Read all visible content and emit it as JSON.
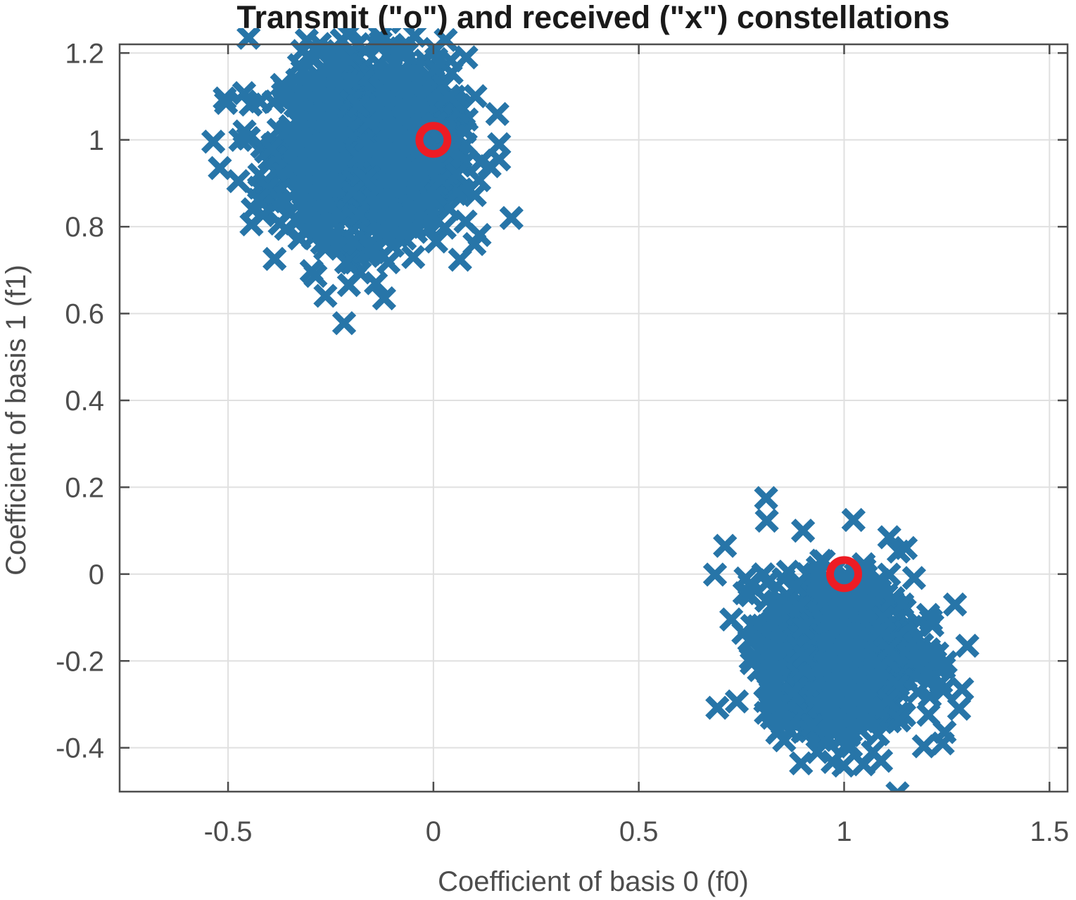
{
  "chart_data": {
    "type": "scatter",
    "title": "Transmit (\"o\") and received (\"x\") constellations",
    "xlabel": "Coefficient of basis 0 (f0)",
    "ylabel": "Coefficient of basis 1 (f1)",
    "xlim": [
      -0.764,
      1.544
    ],
    "ylim": [
      -0.501,
      1.22
    ],
    "xticks": [
      -0.5,
      0,
      0.5,
      1,
      1.5
    ],
    "xtick_labels": [
      "-0.5",
      "0",
      "0.5",
      "1",
      "1.5"
    ],
    "yticks": [
      -0.4,
      -0.2,
      0,
      0.2,
      0.4,
      0.6,
      0.8,
      1,
      1.2
    ],
    "ytick_labels": [
      "-0.4",
      "-0.2",
      "0",
      "0.2",
      "0.4",
      "0.6",
      "0.8",
      "1",
      "1.2"
    ],
    "grid": true,
    "legend": "none",
    "series": [
      {
        "name": "received",
        "marker": "x",
        "color": "#2775a8",
        "clusters": [
          {
            "center": [
              -0.16,
              0.98
            ],
            "spread": [
              0.1,
              0.1
            ],
            "count": 1500
          },
          {
            "center": [
              0.99,
              -0.18
            ],
            "spread": [
              0.09,
              0.085
            ],
            "count": 1100
          }
        ],
        "points": [
          [
            -0.52,
            0.935
          ],
          [
            -0.505,
            1.085
          ],
          [
            -0.475,
            0.905
          ],
          [
            -0.47,
            1.0
          ],
          [
            -0.45,
            1.235
          ],
          [
            -0.35,
            1.3
          ],
          [
            -0.44,
            0.84
          ],
          [
            -0.12,
            0.635
          ],
          [
            -0.14,
            0.67
          ],
          [
            0.03,
            1.23
          ],
          [
            0.08,
            1.19
          ],
          [
            0.16,
            0.955
          ],
          [
            0.16,
            0.99
          ],
          [
            0.19,
            0.82
          ],
          [
            0.1,
            0.76
          ],
          [
            -0.2,
            1.31
          ],
          [
            -0.08,
            1.3
          ],
          [
            0.81,
            0.175
          ],
          [
            0.71,
            0.065
          ],
          [
            1.13,
            -0.505
          ],
          [
            1.3,
            -0.165
          ],
          [
            1.28,
            -0.31
          ],
          [
            1.24,
            -0.39
          ],
          [
            1.27,
            -0.07
          ],
          [
            1.15,
            0.06
          ],
          [
            1.11,
            0.085
          ],
          [
            1.07,
            -0.41
          ],
          [
            1.09,
            -0.43
          ],
          [
            0.85,
            -0.345
          ],
          [
            0.76,
            -0.01
          ],
          [
            0.79,
            -0.12
          ],
          [
            0.9,
            0.1
          ]
        ]
      },
      {
        "name": "transmit",
        "marker": "o",
        "color": "#ed1c24",
        "points": [
          [
            0,
            1
          ],
          [
            1,
            0
          ]
        ]
      }
    ]
  }
}
